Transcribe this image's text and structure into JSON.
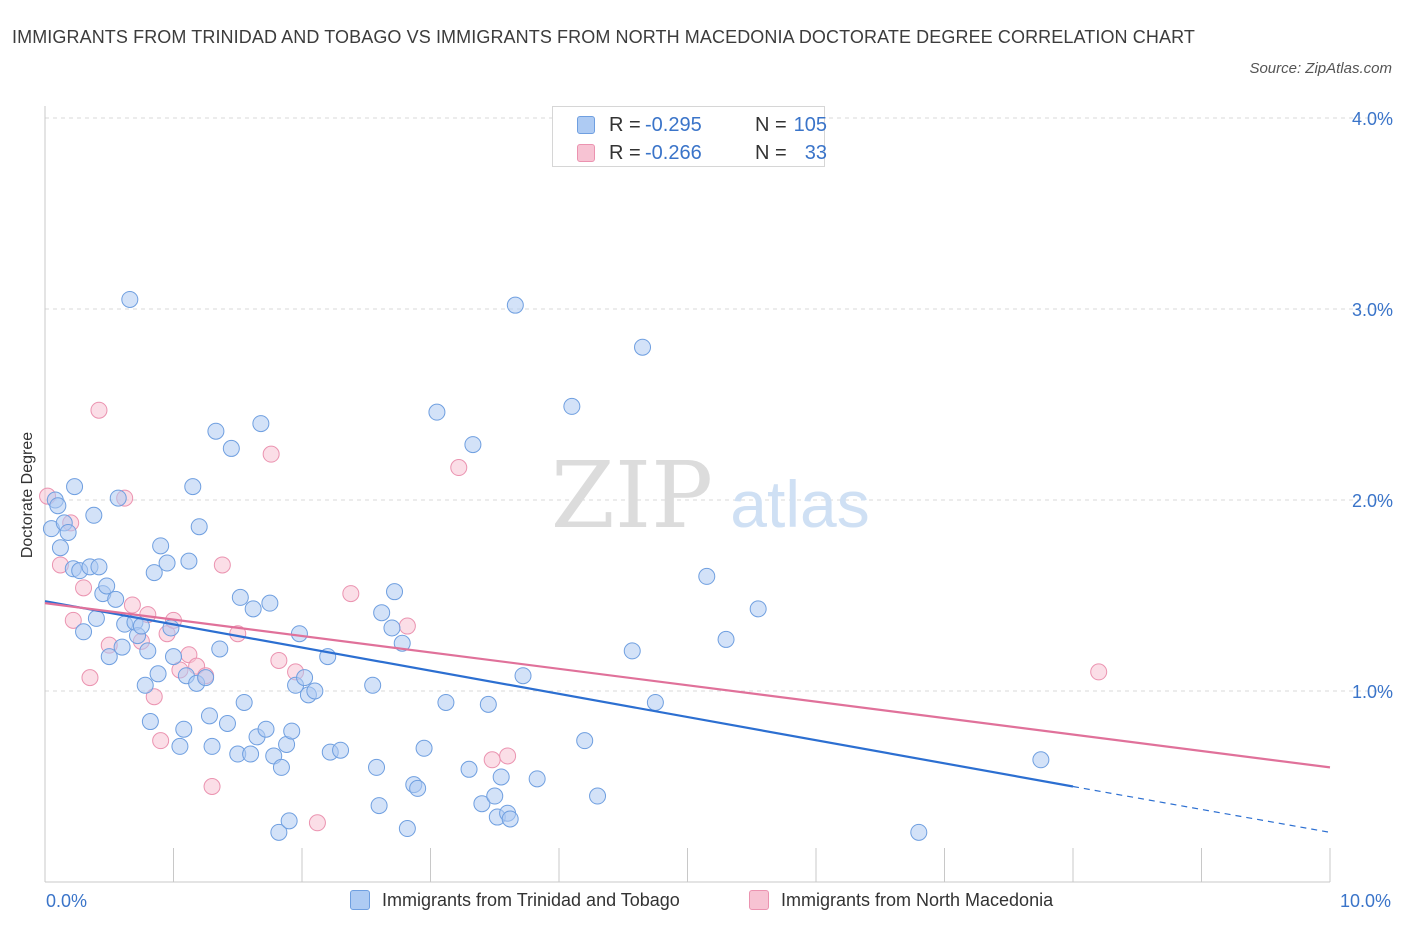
{
  "header": {
    "title": "IMMIGRANTS FROM TRINIDAD AND TOBAGO VS IMMIGRANTS FROM NORTH MACEDONIA DOCTORATE DEGREE CORRELATION CHART",
    "source": "Source: ZipAtlas.com"
  },
  "watermark": {
    "zip": "ZIP",
    "atlas": "atlas"
  },
  "legend": {
    "rows": [
      {
        "r_label": "R =",
        "r_value": "-0.295",
        "n_label": "N =",
        "n_value": "105"
      },
      {
        "r_label": "R =",
        "r_value": "-0.266",
        "n_label": "N =",
        "n_value": "33"
      }
    ]
  },
  "colors": {
    "blue_fill": "#aecbf3",
    "blue_stroke": "#6f9fe0",
    "blue_line": "#2c6fd1",
    "pink_fill": "#f7c3d3",
    "pink_stroke": "#eb93b0",
    "pink_line": "#e0719a",
    "tick_label": "#3a74c9",
    "grid": "#d9d9d9"
  },
  "chart_data": {
    "type": "scatter",
    "title": "IMMIGRANTS FROM TRINIDAD AND TOBAGO VS IMMIGRANTS FROM NORTH MACEDONIA DOCTORATE DEGREE CORRELATION CHART",
    "xlabel": "",
    "ylabel": "Doctorate Degree",
    "xlim": [
      0,
      10
    ],
    "ylim": [
      0,
      4.0
    ],
    "x_tick_labels": [
      "0.0%",
      "10.0%"
    ],
    "y_ticks": [
      1.0,
      2.0,
      3.0,
      4.0
    ],
    "y_tick_labels": [
      "1.0%",
      "2.0%",
      "3.0%",
      "4.0%"
    ],
    "grid": "horizontal dashed",
    "legend_position": "top-center",
    "series": [
      {
        "name": "Immigrants from Trinidad and Tobago",
        "color": "blue",
        "r": -0.295,
        "n": 105,
        "trend": {
          "x0": 0.0,
          "y0": 1.47,
          "x1": 8.0,
          "y1": 0.5,
          "dashed_to_x": 10.0,
          "dashed_to_y": 0.26
        },
        "points": [
          [
            0.05,
            1.85
          ],
          [
            0.08,
            2.0
          ],
          [
            0.1,
            1.97
          ],
          [
            0.12,
            1.75
          ],
          [
            0.15,
            1.88
          ],
          [
            0.18,
            1.83
          ],
          [
            0.22,
            1.64
          ],
          [
            0.23,
            2.07
          ],
          [
            0.27,
            1.63
          ],
          [
            0.3,
            1.31
          ],
          [
            0.35,
            1.65
          ],
          [
            0.38,
            1.92
          ],
          [
            0.4,
            1.38
          ],
          [
            0.42,
            1.65
          ],
          [
            0.45,
            1.51
          ],
          [
            0.48,
            1.55
          ],
          [
            0.5,
            1.18
          ],
          [
            0.55,
            1.48
          ],
          [
            0.57,
            2.01
          ],
          [
            0.6,
            1.23
          ],
          [
            0.62,
            1.35
          ],
          [
            0.66,
            3.05
          ],
          [
            0.7,
            1.36
          ],
          [
            0.72,
            1.29
          ],
          [
            0.75,
            1.34
          ],
          [
            0.78,
            1.03
          ],
          [
            0.8,
            1.21
          ],
          [
            0.82,
            0.84
          ],
          [
            0.85,
            1.62
          ],
          [
            0.88,
            1.09
          ],
          [
            0.9,
            1.76
          ],
          [
            0.95,
            1.67
          ],
          [
            0.98,
            1.33
          ],
          [
            1.0,
            1.18
          ],
          [
            1.05,
            0.71
          ],
          [
            1.08,
            0.8
          ],
          [
            1.1,
            1.08
          ],
          [
            1.12,
            1.68
          ],
          [
            1.15,
            2.07
          ],
          [
            1.18,
            1.04
          ],
          [
            1.2,
            1.86
          ],
          [
            1.25,
            1.07
          ],
          [
            1.28,
            0.87
          ],
          [
            1.3,
            0.71
          ],
          [
            1.33,
            2.36
          ],
          [
            1.36,
            1.22
          ],
          [
            1.42,
            0.83
          ],
          [
            1.45,
            2.27
          ],
          [
            1.5,
            0.67
          ],
          [
            1.52,
            1.49
          ],
          [
            1.55,
            0.94
          ],
          [
            1.6,
            0.67
          ],
          [
            1.62,
            1.43
          ],
          [
            1.65,
            0.76
          ],
          [
            1.68,
            2.4
          ],
          [
            1.72,
            0.8
          ],
          [
            1.75,
            1.46
          ],
          [
            1.78,
            0.66
          ],
          [
            1.82,
            0.26
          ],
          [
            1.84,
            0.6
          ],
          [
            1.88,
            0.72
          ],
          [
            1.9,
            0.32
          ],
          [
            1.92,
            0.79
          ],
          [
            1.95,
            1.03
          ],
          [
            1.98,
            1.3
          ],
          [
            2.02,
            1.07
          ],
          [
            2.05,
            0.98
          ],
          [
            2.1,
            1.0
          ],
          [
            2.2,
            1.18
          ],
          [
            2.22,
            0.68
          ],
          [
            2.3,
            0.69
          ],
          [
            2.55,
            1.03
          ],
          [
            2.58,
            0.6
          ],
          [
            2.6,
            0.4
          ],
          [
            2.62,
            1.41
          ],
          [
            2.7,
            1.33
          ],
          [
            2.72,
            1.52
          ],
          [
            2.78,
            1.25
          ],
          [
            2.82,
            0.28
          ],
          [
            2.87,
            0.51
          ],
          [
            2.9,
            0.49
          ],
          [
            2.95,
            0.7
          ],
          [
            3.05,
            2.46
          ],
          [
            3.12,
            0.94
          ],
          [
            3.3,
            0.59
          ],
          [
            3.33,
            2.29
          ],
          [
            3.4,
            0.41
          ],
          [
            3.45,
            0.93
          ],
          [
            3.5,
            0.45
          ],
          [
            3.52,
            0.34
          ],
          [
            3.55,
            0.55
          ],
          [
            3.6,
            0.36
          ],
          [
            3.62,
            0.33
          ],
          [
            3.66,
            3.02
          ],
          [
            3.72,
            1.08
          ],
          [
            3.83,
            0.54
          ],
          [
            4.1,
            2.49
          ],
          [
            4.2,
            0.74
          ],
          [
            4.3,
            0.45
          ],
          [
            4.65,
            2.8
          ],
          [
            4.57,
            1.21
          ],
          [
            4.75,
            0.94
          ],
          [
            5.15,
            1.6
          ],
          [
            5.3,
            1.27
          ],
          [
            5.55,
            1.43
          ],
          [
            7.75,
            0.64
          ],
          [
            6.8,
            0.26
          ]
        ]
      },
      {
        "name": "Immigrants from North Macedonia",
        "color": "pink",
        "r": -0.266,
        "n": 33,
        "trend": {
          "x0": 0.0,
          "y0": 1.46,
          "x1": 10.0,
          "y1": 0.6
        },
        "points": [
          [
            0.02,
            2.02
          ],
          [
            0.12,
            1.66
          ],
          [
            0.2,
            1.88
          ],
          [
            0.22,
            1.37
          ],
          [
            0.3,
            1.54
          ],
          [
            0.35,
            1.07
          ],
          [
            0.42,
            2.47
          ],
          [
            0.5,
            1.24
          ],
          [
            0.62,
            2.01
          ],
          [
            0.68,
            1.45
          ],
          [
            0.75,
            1.26
          ],
          [
            0.8,
            1.4
          ],
          [
            0.85,
            0.97
          ],
          [
            0.9,
            0.74
          ],
          [
            0.95,
            1.3
          ],
          [
            1.0,
            1.37
          ],
          [
            1.05,
            1.11
          ],
          [
            1.12,
            1.19
          ],
          [
            1.18,
            1.13
          ],
          [
            1.25,
            1.08
          ],
          [
            1.3,
            0.5
          ],
          [
            1.38,
            1.66
          ],
          [
            1.5,
            1.3
          ],
          [
            1.76,
            2.24
          ],
          [
            1.82,
            1.16
          ],
          [
            1.95,
            1.1
          ],
          [
            2.12,
            0.31
          ],
          [
            2.38,
            1.51
          ],
          [
            2.82,
            1.34
          ],
          [
            3.22,
            2.17
          ],
          [
            3.48,
            0.64
          ],
          [
            3.6,
            0.66
          ],
          [
            8.2,
            1.1
          ]
        ]
      }
    ]
  },
  "bottom_legend": {
    "items": [
      {
        "label": "Immigrants from Trinidad and Tobago"
      },
      {
        "label": "Immigrants from North Macedonia"
      }
    ]
  }
}
